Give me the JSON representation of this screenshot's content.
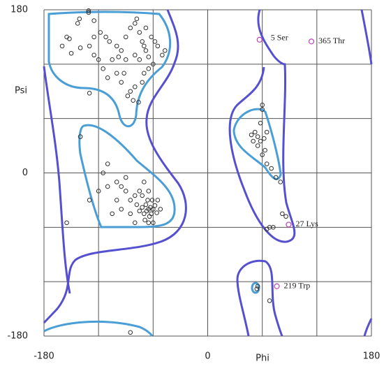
{
  "chart_data": {
    "type": "scatter",
    "x_label": "Phi",
    "y_label": "Psi",
    "xlim": [
      -180,
      180
    ],
    "ylim": [
      -180,
      180
    ],
    "xticks": [
      -180,
      0,
      180
    ],
    "yticks": [
      -180,
      0,
      180
    ],
    "xgrid": [
      -180,
      -120,
      -60,
      0,
      60,
      120,
      180
    ],
    "ygrid": [
      -180,
      -120,
      -60,
      0,
      60,
      120,
      180
    ],
    "color": "#333333",
    "x": [
      -131,
      -131,
      -141,
      -143,
      -125,
      -155,
      -152,
      -160,
      -150,
      -140,
      -130,
      -125,
      -118,
      -112,
      -108,
      -100,
      -95,
      -90,
      -85,
      -80,
      -75,
      -72,
      -70,
      -68,
      -65,
      -62,
      -58,
      -55,
      -60,
      -65,
      -70,
      -72,
      -80,
      -85,
      -95,
      -100,
      -110,
      -120,
      -125,
      -130,
      -115,
      -105,
      -90,
      -80,
      -75,
      -68,
      -78,
      -50,
      -47,
      -88,
      -82,
      -76,
      -92,
      -98,
      -65,
      -63,
      -67,
      -62,
      -68,
      -60,
      -70,
      -64,
      -58,
      -72,
      -66,
      -61,
      -69,
      -75,
      -56,
      -78,
      -80,
      -85,
      -90,
      -95,
      -100,
      -110,
      -115,
      -120,
      -130,
      -155,
      -140,
      -110,
      -90,
      -85,
      -95,
      -100,
      -75,
      -70,
      -65,
      -55,
      -52,
      -80,
      -105,
      -65,
      -60,
      -72,
      60,
      60,
      58,
      52,
      48,
      55,
      62,
      65,
      58,
      55,
      50,
      63,
      60,
      65,
      70,
      75,
      80,
      68,
      65,
      72,
      82,
      86,
      54,
      68,
      55,
      -85
    ],
    "y": [
      179,
      177,
      170,
      165,
      168,
      150,
      148,
      140,
      132,
      138,
      140,
      150,
      155,
      150,
      145,
      140,
      135,
      150,
      160,
      165,
      155,
      145,
      140,
      135,
      128,
      150,
      145,
      140,
      120,
      115,
      110,
      100,
      95,
      90,
      100,
      110,
      105,
      125,
      130,
      88,
      115,
      125,
      125,
      130,
      125,
      160,
      170,
      130,
      135,
      85,
      80,
      78,
      110,
      128,
      -40,
      -38,
      -42,
      -45,
      -35,
      -40,
      -45,
      -48,
      -36,
      -38,
      -30,
      -30,
      -52,
      -42,
      -44,
      -35,
      -25,
      -30,
      -20,
      -15,
      -10,
      -15,
      0,
      -20,
      -30,
      -55,
      40,
      10,
      -5,
      -45,
      -40,
      -30,
      -20,
      -10,
      -20,
      -30,
      -40,
      -55,
      -45,
      -55,
      -55,
      -25,
      75,
      70,
      55,
      45,
      42,
      40,
      38,
      45,
      35,
      30,
      35,
      25,
      20,
      10,
      5,
      -5,
      -10,
      -60,
      -62,
      -60,
      -45,
      -48,
      -128,
      -141,
      -125,
      -176
    ],
    "annotation_color": "#c040c0",
    "annotations": [
      {
        "text": "5 Ser",
        "x": 57,
        "y": 147
      },
      {
        "text": "365 Thr",
        "x": 114,
        "y": 145
      },
      {
        "text": "27 Lys",
        "x": 89,
        "y": -57
      },
      {
        "text": "219 Trp",
        "x": 76,
        "y": -125
      }
    ]
  }
}
